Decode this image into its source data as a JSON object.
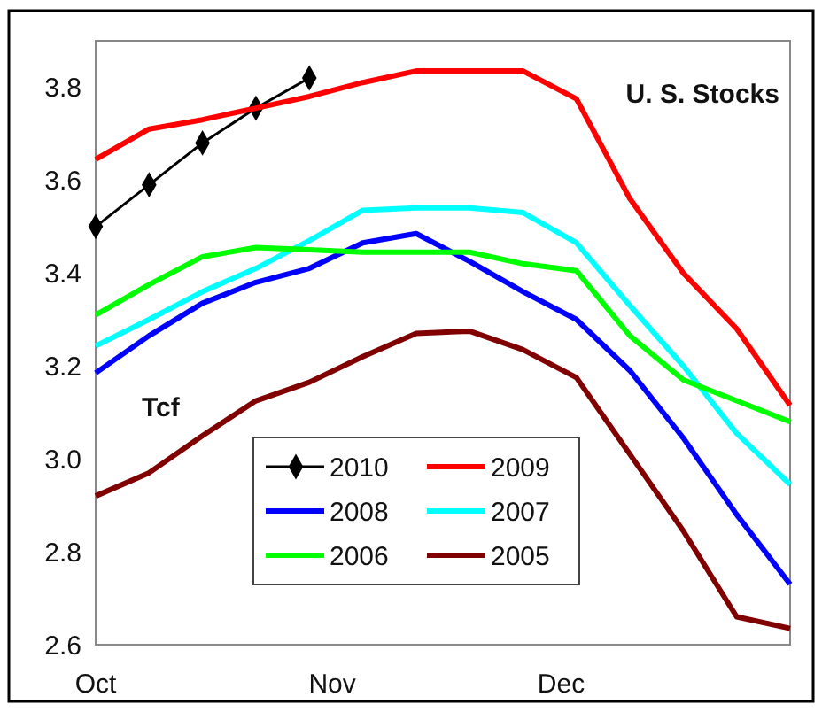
{
  "chart_data": {
    "type": "line",
    "x": [
      "--10-01",
      "--10-08",
      "--10-15",
      "--10-22",
      "--10-29",
      "--11-05",
      "--11-12",
      "--11-19",
      "--11-26",
      "--12-03",
      "--12-10",
      "--12-17",
      "--12-24",
      "--12-31"
    ],
    "xlim": [
      "--10-01",
      "--12-31"
    ],
    "xticks": [
      {
        "value": "--10-01",
        "label": "Oct"
      },
      {
        "value": "--11-01",
        "label": "Nov"
      },
      {
        "value": "--12-01",
        "label": "Dec"
      }
    ],
    "ylim": [
      2.6,
      3.9
    ],
    "yticks": [
      {
        "value": 2.6,
        "label": "2.6"
      },
      {
        "value": 2.8,
        "label": "2.8"
      },
      {
        "value": 3.0,
        "label": "3.0"
      },
      {
        "value": 3.2,
        "label": "3.2"
      },
      {
        "value": 3.4,
        "label": "3.4"
      },
      {
        "value": 3.6,
        "label": "3.6"
      },
      {
        "value": 3.8,
        "label": "3.8"
      }
    ],
    "grid": false,
    "legend": "bottom",
    "line_style": "solid",
    "annotations": [
      "U. S. Stocks",
      "Tcf"
    ],
    "series": [
      {
        "name": "2010",
        "color": "#000000",
        "marker": "diamond",
        "values": [
          3.5,
          3.59,
          3.68,
          3.755,
          3.82,
          null,
          null,
          null,
          null,
          null,
          null,
          null,
          null,
          null
        ]
      },
      {
        "name": "2009",
        "color": "#ff0000",
        "marker": "none",
        "values": [
          3.645,
          3.71,
          3.73,
          3.755,
          3.78,
          3.81,
          3.835,
          3.835,
          3.835,
          3.775,
          3.56,
          3.4,
          3.28,
          3.115
        ]
      },
      {
        "name": "2008",
        "color": "#0000ff",
        "marker": "none",
        "values": [
          3.185,
          3.265,
          3.335,
          3.38,
          3.41,
          3.465,
          3.485,
          3.425,
          3.36,
          3.3,
          3.19,
          3.045,
          2.88,
          2.73
        ]
      },
      {
        "name": "2007",
        "color": "#00ffff",
        "marker": "none",
        "values": [
          3.243,
          3.3,
          3.36,
          3.41,
          3.47,
          3.535,
          3.54,
          3.54,
          3.53,
          3.465,
          3.33,
          3.2,
          3.055,
          2.945
        ]
      },
      {
        "name": "2006",
        "color": "#00ff00",
        "marker": "none",
        "values": [
          3.31,
          3.375,
          3.435,
          3.455,
          3.45,
          3.445,
          3.445,
          3.445,
          3.42,
          3.405,
          3.265,
          3.17,
          3.125,
          3.08
        ]
      },
      {
        "name": "2005",
        "color": "#800000",
        "marker": "none",
        "values": [
          2.92,
          2.97,
          3.05,
          3.125,
          3.165,
          3.22,
          3.27,
          3.275,
          3.235,
          3.175,
          3.01,
          2.845,
          2.66,
          2.635
        ]
      }
    ]
  }
}
